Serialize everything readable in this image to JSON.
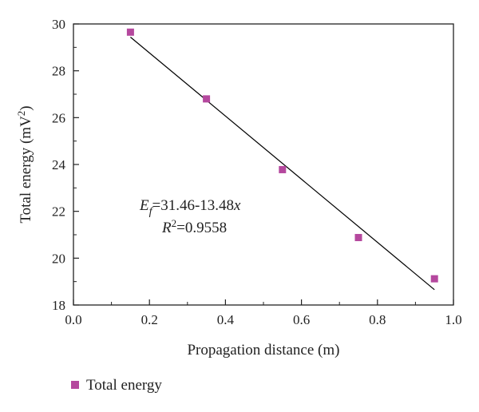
{
  "chart_data": {
    "type": "scatter",
    "title": "",
    "xlabel": "Propagation distance (m)",
    "ylabel": "Total energy (mV²)",
    "ylabel_parts": {
      "prefix": "Total energy (mV",
      "sup": "2",
      "suffix": ")"
    },
    "xlim": [
      0.0,
      1.0
    ],
    "ylim": [
      18,
      30
    ],
    "x_ticks": [
      "0.0",
      "0.2",
      "0.4",
      "0.6",
      "0.8",
      "1.0"
    ],
    "y_ticks": [
      "18",
      "20",
      "22",
      "24",
      "26",
      "28",
      "30"
    ],
    "series": [
      {
        "name": "Total energy",
        "marker": "square",
        "color": "#b5489e",
        "x": [
          0.15,
          0.35,
          0.55,
          0.75,
          0.95
        ],
        "y": [
          29.65,
          26.8,
          23.78,
          20.88,
          19.12
        ]
      }
    ],
    "fit_line": {
      "intercept": 31.46,
      "slope": -13.48,
      "x_range": [
        0.15,
        0.95
      ],
      "color": "#000000"
    },
    "annotation": {
      "equation": {
        "var": "E",
        "sub": "f",
        "rhs_prefix": "=31.46-13.48",
        "rhs_var": "x"
      },
      "r_squared": {
        "var": "R",
        "sup": "2",
        "rhs": "=0.9558"
      }
    },
    "grid": false,
    "legend_position": "bottom-left"
  }
}
